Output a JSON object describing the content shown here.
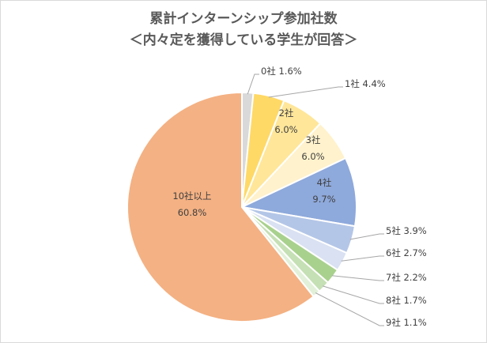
{
  "chart_data": {
    "type": "pie",
    "title": [
      "累計インターンシップ参加社数",
      "＜内々定を獲得している学生が回答＞"
    ],
    "slices": [
      {
        "label": "0社",
        "value": 1.6,
        "value_text": "1.6%",
        "color": "#d9d9d9"
      },
      {
        "label": "1社",
        "value": 4.4,
        "value_text": "4.4%",
        "color": "#ffd966"
      },
      {
        "label": "2社",
        "value": 6.0,
        "value_text": "6.0%",
        "color": "#ffe699"
      },
      {
        "label": "3社",
        "value": 6.0,
        "value_text": "6.0%",
        "color": "#fff2cc"
      },
      {
        "label": "4社",
        "value": 9.7,
        "value_text": "9.7%",
        "color": "#8ea9db"
      },
      {
        "label": "5社",
        "value": 3.9,
        "value_text": "3.9%",
        "color": "#b4c6e7"
      },
      {
        "label": "6社",
        "value": 2.7,
        "value_text": "2.7%",
        "color": "#d9e1f2"
      },
      {
        "label": "7社",
        "value": 2.2,
        "value_text": "2.2%",
        "color": "#a9d18e"
      },
      {
        "label": "8社",
        "value": 1.7,
        "value_text": "1.7%",
        "color": "#c5e0b4"
      },
      {
        "label": "9社",
        "value": 1.1,
        "value_text": "1.1%",
        "color": "#e2f0d9"
      },
      {
        "label": "10社以上",
        "value": 60.8,
        "value_text": "60.8%",
        "color": "#f4b183"
      }
    ]
  }
}
